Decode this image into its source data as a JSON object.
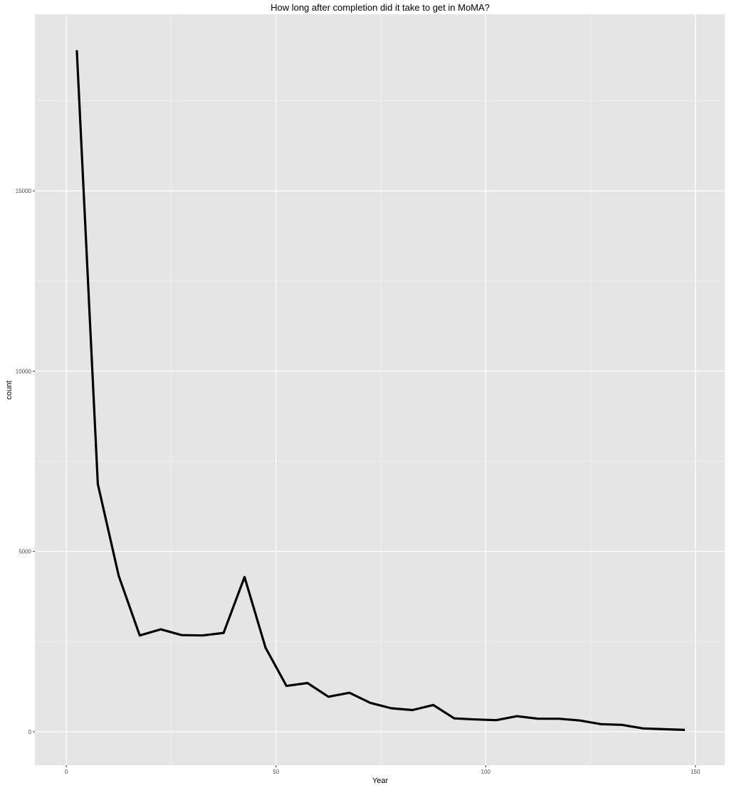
{
  "chart_data": {
    "type": "line",
    "title": "How long after completion did it take to get in MoMA?",
    "xlabel": "Year",
    "ylabel": "count",
    "xlim": [
      -7.5,
      157
    ],
    "ylim": [
      -930,
      19900
    ],
    "x_ticks": [
      0,
      50,
      100,
      150
    ],
    "y_ticks": [
      0,
      5000,
      10000,
      15000
    ],
    "x_tick_labels": [
      "0",
      "50",
      "100",
      "150"
    ],
    "y_tick_labels": [
      "0",
      "5000",
      "10000",
      "15000"
    ],
    "grid": true,
    "background": "#e5e5e5",
    "grid_color": "#ffffff",
    "line_color": "#000000",
    "series": [
      {
        "x": [
          2.5,
          7.5,
          12.5,
          17.5,
          22.5,
          27.5,
          32.5,
          37.5,
          42.5,
          47.5,
          52.5,
          57.5,
          62.5,
          67.5,
          72.5,
          77.5,
          82.5,
          87.5,
          92.5,
          97.5,
          102.5,
          107.5,
          112.5,
          117.5,
          122.5,
          127.5,
          132.5,
          137.5,
          142.5,
          147.5
        ],
        "values": [
          18900,
          6870,
          4320,
          2670,
          2840,
          2680,
          2670,
          2740,
          4290,
          2330,
          1270,
          1350,
          970,
          1080,
          800,
          650,
          600,
          740,
          370,
          340,
          320,
          430,
          360,
          360,
          310,
          210,
          190,
          90,
          70,
          50
        ]
      }
    ]
  }
}
